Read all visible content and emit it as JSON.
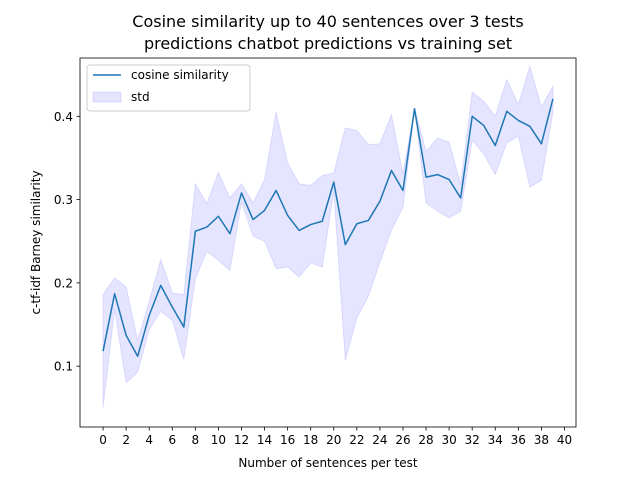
{
  "chart_data": {
    "type": "line",
    "title_lines": [
      "Cosine similarity up to 40 sentences over 3 tests",
      "predictions chatbot predictions vs training set"
    ],
    "xlabel": "Number of sentences per test",
    "ylabel": "c-tf-idf Barney similarity",
    "xlim": [
      -2,
      41
    ],
    "ylim": [
      0.027,
      0.47
    ],
    "xticks": [
      0,
      2,
      4,
      6,
      8,
      10,
      12,
      14,
      16,
      18,
      20,
      22,
      24,
      26,
      28,
      30,
      32,
      34,
      36,
      38,
      40
    ],
    "xtick_labels": [
      "0",
      "2",
      "4",
      "6",
      "8",
      "10",
      "12",
      "14",
      "16",
      "18",
      "20",
      "22",
      "24",
      "26",
      "28",
      "30",
      "32",
      "34",
      "36",
      "38",
      "40"
    ],
    "yticks": [
      0.1,
      0.2,
      0.3,
      0.4
    ],
    "ytick_labels": [
      "0.1",
      "0.2",
      "0.3",
      "0.4"
    ],
    "grid": false,
    "legend_placement": "upper-left",
    "series": [
      {
        "name": "cosine similarity",
        "color": "#1f77b4",
        "x": [
          0,
          1,
          2,
          3,
          4,
          5,
          6,
          7,
          8,
          9,
          10,
          11,
          12,
          13,
          14,
          15,
          16,
          17,
          18,
          19,
          20,
          21,
          22,
          23,
          24,
          25,
          26,
          27,
          28,
          29,
          30,
          31,
          32,
          33,
          34,
          35,
          36,
          37,
          38,
          39
        ],
        "y": [
          0.118,
          0.187,
          0.137,
          0.112,
          0.161,
          0.197,
          0.171,
          0.147,
          0.262,
          0.267,
          0.28,
          0.259,
          0.308,
          0.276,
          0.287,
          0.311,
          0.281,
          0.263,
          0.27,
          0.274,
          0.321,
          0.246,
          0.271,
          0.275,
          0.298,
          0.335,
          0.311,
          0.409,
          0.327,
          0.33,
          0.324,
          0.302,
          0.4,
          0.389,
          0.365,
          0.406,
          0.395,
          0.388,
          0.367,
          0.421
        ]
      }
    ],
    "band": {
      "name": "std",
      "color": "#0000ff",
      "opacity": 0.1,
      "lower": [
        0.05,
        0.168,
        0.08,
        0.093,
        0.144,
        0.166,
        0.155,
        0.108,
        0.205,
        0.238,
        0.227,
        0.215,
        0.297,
        0.256,
        0.25,
        0.217,
        0.219,
        0.207,
        0.224,
        0.219,
        0.31,
        0.107,
        0.158,
        0.184,
        0.225,
        0.263,
        0.291,
        0.408,
        0.296,
        0.286,
        0.278,
        0.286,
        0.371,
        0.355,
        0.33,
        0.368,
        0.376,
        0.315,
        0.323,
        0.406
      ],
      "upper": [
        0.186,
        0.206,
        0.195,
        0.131,
        0.178,
        0.228,
        0.188,
        0.186,
        0.319,
        0.295,
        0.333,
        0.302,
        0.319,
        0.296,
        0.324,
        0.405,
        0.344,
        0.319,
        0.317,
        0.329,
        0.332,
        0.386,
        0.383,
        0.366,
        0.367,
        0.402,
        0.331,
        0.41,
        0.358,
        0.374,
        0.369,
        0.318,
        0.429,
        0.418,
        0.4,
        0.444,
        0.414,
        0.46,
        0.411,
        0.436
      ]
    }
  }
}
